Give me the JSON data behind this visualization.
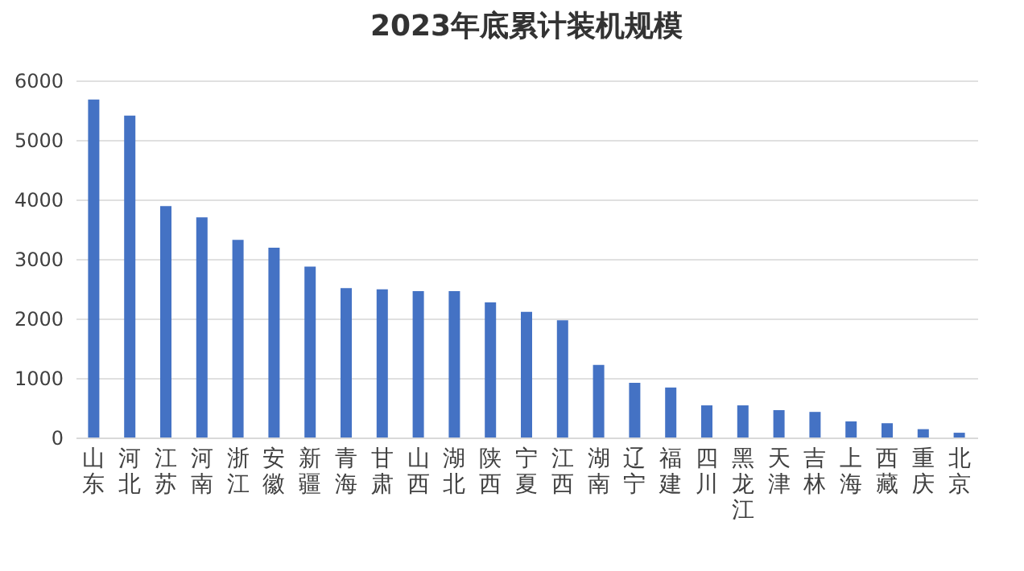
{
  "chart_data": {
    "type": "bar",
    "title": "2023年底累计装机规模",
    "categories": [
      "山东",
      "河北",
      "江苏",
      "河南",
      "浙江",
      "安徽",
      "新疆",
      "青海",
      "甘肃",
      "山西",
      "湖北",
      "陕西",
      "宁夏",
      "江西",
      "湖南",
      "辽宁",
      "福建",
      "四川",
      "黑龙江",
      "天津",
      "吉林",
      "上海",
      "西藏",
      "重庆",
      "北京"
    ],
    "values": [
      5680,
      5410,
      3890,
      3700,
      3320,
      3190,
      2870,
      2510,
      2490,
      2460,
      2460,
      2270,
      2110,
      1970,
      1220,
      920,
      840,
      540,
      540,
      460,
      430,
      270,
      240,
      140,
      80
    ],
    "color": "#4472c4",
    "ylim": [
      0,
      6000
    ],
    "yticks": [
      0,
      1000,
      2000,
      3000,
      4000,
      5000,
      6000
    ],
    "grid": "y"
  }
}
